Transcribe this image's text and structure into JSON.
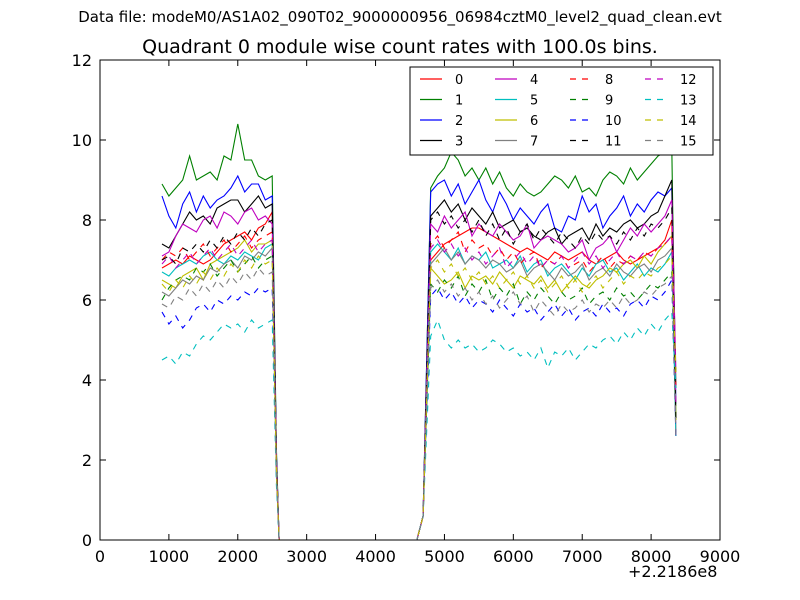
{
  "header": {
    "suptitle": "Data file: modeM0/AS1A02_090T02_9000000956_06984cztM0_level2_quad_clean.evt"
  },
  "chart_data": {
    "type": "line",
    "title": "Quadrant 0 module wise count rates with 100.0s bins.",
    "xlabel": "",
    "ylabel": "",
    "x_offset_label": "+2.2186e8",
    "xlim": [
      0,
      9000
    ],
    "ylim": [
      0,
      12
    ],
    "xticks": [
      0,
      1000,
      2000,
      3000,
      4000,
      5000,
      6000,
      7000,
      8000,
      9000
    ],
    "yticks": [
      0,
      2,
      4,
      6,
      8,
      10,
      12
    ],
    "grid": false,
    "legend_position": "top-right",
    "legend_columns": 4,
    "x_segments": [
      {
        "start": 900,
        "end": 2500
      },
      {
        "start": 4800,
        "end": 8300
      }
    ],
    "series": [
      {
        "name": "0",
        "color": "#ff0000",
        "dash": "solid",
        "seg1": [
          6.8,
          6.9,
          7.0,
          6.9,
          7.1,
          7.0,
          6.9,
          7.0,
          7.2,
          7.4,
          7.5,
          7.6,
          7.7,
          7.5,
          7.8,
          7.9,
          8.2
        ],
        "seg2": [
          7.0,
          7.2,
          7.4,
          7.5,
          7.6,
          7.7,
          7.8,
          7.8,
          7.7,
          7.6,
          7.5,
          7.4,
          7.3,
          7.2,
          7.3,
          7.2,
          7.1,
          7.0,
          7.2,
          7.1,
          7.0,
          7.1,
          7.2,
          7.0,
          6.9,
          7.0,
          7.1,
          7.2,
          7.0,
          6.9,
          7.0,
          7.1,
          7.2,
          7.3,
          7.5,
          8.0
        ]
      },
      {
        "name": "1",
        "color": "#008000",
        "dash": "solid",
        "seg1": [
          8.9,
          8.6,
          8.8,
          9.0,
          9.6,
          9.0,
          9.1,
          9.2,
          9.0,
          9.6,
          9.5,
          10.4,
          9.5,
          9.5,
          9.1,
          9.0,
          9.1
        ],
        "seg2": [
          8.8,
          9.1,
          9.3,
          9.7,
          9.5,
          9.1,
          9.3,
          9.0,
          9.3,
          8.9,
          9.2,
          8.8,
          8.6,
          8.9,
          8.7,
          8.6,
          8.7,
          8.9,
          9.1,
          9.0,
          8.8,
          9.1,
          8.7,
          8.8,
          8.6,
          9.0,
          9.2,
          9.1,
          8.9,
          9.3,
          9.0,
          9.2,
          9.4,
          9.6,
          9.7,
          9.8
        ]
      },
      {
        "name": "2",
        "color": "#0000ff",
        "dash": "solid",
        "seg1": [
          8.6,
          8.1,
          7.8,
          8.4,
          8.7,
          8.2,
          8.6,
          8.3,
          8.5,
          8.6,
          8.8,
          9.1,
          8.7,
          8.9,
          8.9,
          8.5,
          8.6
        ],
        "seg2": [
          8.7,
          8.9,
          9.0,
          8.6,
          8.9,
          8.4,
          8.7,
          9.0,
          8.5,
          8.2,
          8.7,
          8.4,
          8.0,
          8.3,
          8.1,
          7.9,
          8.2,
          8.4,
          7.8,
          7.7,
          8.1,
          8.0,
          8.6,
          8.2,
          8.4,
          7.8,
          8.1,
          8.3,
          8.6,
          8.1,
          8.4,
          8.2,
          8.5,
          8.7,
          8.6,
          8.8
        ]
      },
      {
        "name": "3",
        "color": "#000000",
        "dash": "solid",
        "seg1": [
          7.4,
          7.3,
          7.6,
          7.9,
          8.2,
          8.0,
          8.1,
          7.9,
          8.3,
          8.4,
          8.5,
          8.5,
          8.2,
          8.4,
          8.6,
          8.3,
          8.4
        ],
        "seg2": [
          8.1,
          8.3,
          8.5,
          8.2,
          8.4,
          8.0,
          8.3,
          8.1,
          7.9,
          8.2,
          7.8,
          7.9,
          8.0,
          7.7,
          7.8,
          7.6,
          7.5,
          7.7,
          7.8,
          7.4,
          7.6,
          7.7,
          7.8,
          7.5,
          7.9,
          7.6,
          7.8,
          7.7,
          7.9,
          8.0,
          7.8,
          7.9,
          8.1,
          8.2,
          8.6,
          9.0
        ]
      },
      {
        "name": "4",
        "color": "#bf00bf",
        "dash": "solid",
        "seg1": [
          7.1,
          7.2,
          7.6,
          7.9,
          7.8,
          7.7,
          8.0,
          8.1,
          7.8,
          8.2,
          8.1,
          7.9,
          8.2,
          8.3,
          8.0,
          8.1,
          7.9
        ],
        "seg2": [
          7.9,
          7.7,
          8.1,
          7.8,
          8.0,
          8.2,
          7.6,
          7.9,
          7.7,
          7.6,
          7.9,
          7.7,
          7.5,
          7.6,
          7.9,
          7.3,
          7.5,
          7.6,
          7.5,
          7.4,
          7.2,
          7.3,
          7.5,
          7.0,
          7.3,
          7.4,
          7.6,
          7.2,
          7.5,
          7.8,
          7.6,
          7.9,
          7.7,
          7.9,
          8.1,
          8.5
        ]
      },
      {
        "name": "5",
        "color": "#00bfbf",
        "dash": "solid",
        "seg1": [
          6.7,
          6.6,
          6.8,
          6.9,
          7.0,
          6.9,
          7.1,
          7.2,
          7.0,
          6.9,
          7.1,
          7.0,
          7.2,
          7.1,
          7.0,
          7.3,
          7.4
        ],
        "seg2": [
          7.2,
          7.4,
          7.2,
          7.0,
          7.3,
          6.9,
          7.1,
          7.0,
          7.2,
          6.8,
          6.9,
          7.0,
          6.8,
          7.1,
          6.7,
          6.9,
          7.0,
          6.6,
          6.8,
          6.9,
          6.7,
          6.5,
          6.8,
          6.6,
          6.9,
          7.0,
          6.7,
          6.8,
          6.5,
          6.7,
          6.9,
          6.6,
          6.8,
          6.7,
          6.9,
          7.2
        ]
      },
      {
        "name": "6",
        "color": "#bfbf00",
        "dash": "solid",
        "seg1": [
          6.5,
          6.4,
          6.3,
          6.6,
          6.7,
          6.8,
          6.5,
          6.9,
          7.0,
          7.1,
          7.2,
          7.3,
          7.5,
          7.2,
          7.4,
          7.4,
          7.5
        ],
        "seg2": [
          6.8,
          6.6,
          6.4,
          6.5,
          6.7,
          6.3,
          6.6,
          6.5,
          6.6,
          6.4,
          6.7,
          6.5,
          6.3,
          6.6,
          6.5,
          6.4,
          6.6,
          6.3,
          6.5,
          6.2,
          6.4,
          6.6,
          6.4,
          6.3,
          6.5,
          6.6,
          6.8,
          6.7,
          6.9,
          7.0,
          6.8,
          7.1,
          6.9,
          7.2,
          7.4,
          7.6
        ]
      },
      {
        "name": "7",
        "color": "#808080",
        "dash": "solid",
        "seg1": [
          6.2,
          6.1,
          6.3,
          6.5,
          6.4,
          6.6,
          6.5,
          6.8,
          6.7,
          6.9,
          7.0,
          6.8,
          7.1,
          7.0,
          7.2,
          7.1,
          7.3
        ],
        "seg2": [
          6.9,
          7.1,
          7.3,
          7.0,
          7.2,
          6.9,
          7.1,
          7.0,
          6.8,
          7.0,
          6.9,
          6.7,
          6.8,
          7.0,
          6.6,
          6.8,
          6.9,
          6.7,
          6.5,
          6.8,
          6.6,
          6.7,
          6.9,
          6.5,
          6.7,
          6.8,
          6.6,
          6.9,
          6.7,
          6.6,
          6.8,
          6.9,
          6.7,
          7.0,
          7.1,
          7.3
        ]
      },
      {
        "name": "8",
        "color": "#ff0000",
        "dash": "dashed",
        "seg1": [
          7.0,
          7.2,
          7.1,
          7.3,
          7.0,
          7.2,
          7.4,
          7.1,
          7.3,
          7.5,
          7.2,
          7.4,
          7.6,
          7.3,
          7.5,
          7.6,
          7.7
        ],
        "seg2": [
          7.4,
          7.6,
          7.3,
          7.5,
          7.7,
          7.2,
          7.5,
          7.3,
          7.4,
          7.1,
          7.3,
          7.0,
          7.2,
          6.9,
          7.1,
          7.2,
          6.8,
          7.0,
          6.9,
          7.1,
          6.8,
          6.9,
          7.0,
          6.7,
          6.9,
          7.1,
          6.8,
          7.0,
          6.9,
          7.1,
          7.0,
          7.2,
          7.1,
          7.3,
          7.4,
          7.6
        ]
      },
      {
        "name": "9",
        "color": "#008000",
        "dash": "dashed",
        "seg1": [
          6.0,
          6.3,
          6.5,
          6.6,
          6.5,
          6.8,
          6.7,
          6.9,
          6.6,
          6.8,
          7.0,
          6.7,
          6.9,
          7.1,
          6.8,
          7.0,
          7.1
        ],
        "seg2": [
          6.4,
          6.2,
          6.5,
          6.3,
          6.6,
          6.1,
          6.4,
          6.2,
          6.5,
          6.0,
          6.3,
          6.1,
          6.4,
          5.9,
          6.2,
          6.0,
          6.3,
          6.1,
          5.9,
          6.2,
          6.0,
          6.1,
          6.3,
          5.9,
          6.1,
          6.2,
          6.0,
          6.3,
          6.1,
          6.2,
          6.0,
          6.2,
          6.4,
          6.3,
          6.5,
          6.7
        ]
      },
      {
        "name": "10",
        "color": "#0000ff",
        "dash": "dashed",
        "seg1": [
          5.7,
          5.4,
          5.6,
          5.3,
          5.5,
          5.8,
          5.9,
          5.7,
          6.0,
          5.9,
          6.1,
          6.0,
          6.2,
          6.1,
          6.3,
          6.2,
          6.3
        ],
        "seg2": [
          6.1,
          6.3,
          6.0,
          6.2,
          5.9,
          6.1,
          5.8,
          6.0,
          5.9,
          5.7,
          6.0,
          5.8,
          5.6,
          5.9,
          5.7,
          5.8,
          5.5,
          5.7,
          5.9,
          5.6,
          5.8,
          5.5,
          5.7,
          5.8,
          5.6,
          5.9,
          5.7,
          5.8,
          5.6,
          5.9,
          6.0,
          5.8,
          6.1,
          6.0,
          6.2,
          6.5
        ]
      },
      {
        "name": "11",
        "color": "#000000",
        "dash": "dashed",
        "seg1": [
          7.0,
          7.1,
          6.9,
          7.3,
          7.2,
          7.4,
          7.2,
          7.5,
          7.3,
          7.6,
          7.4,
          7.7,
          7.5,
          7.8,
          7.6,
          7.9,
          8.0
        ],
        "seg2": [
          8.0,
          8.2,
          7.9,
          8.1,
          7.8,
          8.0,
          7.7,
          8.0,
          7.6,
          7.9,
          7.5,
          7.8,
          7.4,
          7.7,
          7.9,
          7.5,
          7.8,
          7.6,
          7.4,
          7.7,
          7.5,
          7.3,
          7.6,
          7.4,
          7.7,
          7.5,
          7.6,
          7.4,
          7.7,
          7.5,
          7.8,
          7.6,
          7.9,
          7.8,
          8.0,
          8.3
        ]
      },
      {
        "name": "12",
        "color": "#bf00bf",
        "dash": "dashed",
        "seg1": [
          6.9,
          7.1,
          6.8,
          7.0,
          7.2,
          6.9,
          7.1,
          7.3,
          7.0,
          7.2,
          7.4,
          7.1,
          7.3,
          7.5,
          7.2,
          7.4,
          7.5
        ],
        "seg2": [
          7.3,
          7.5,
          7.2,
          7.4,
          7.1,
          7.3,
          7.0,
          7.2,
          6.9,
          7.1,
          7.3,
          6.8,
          7.0,
          7.2,
          6.9,
          7.1,
          6.8,
          7.0,
          6.9,
          7.1,
          6.8,
          7.0,
          7.2,
          6.9,
          7.1,
          6.8,
          7.0,
          7.2,
          6.9,
          7.1,
          7.0,
          7.2,
          7.1,
          7.3,
          7.4,
          7.6
        ]
      },
      {
        "name": "13",
        "color": "#00bfbf",
        "dash": "dashed",
        "seg1": [
          4.5,
          4.6,
          4.4,
          4.7,
          4.6,
          4.9,
          5.1,
          5.0,
          5.2,
          5.4,
          5.3,
          5.4,
          5.2,
          5.5,
          5.3,
          5.4,
          5.5
        ],
        "seg2": [
          5.1,
          5.5,
          5.0,
          4.8,
          5.0,
          4.8,
          4.9,
          4.7,
          4.8,
          5.0,
          4.9,
          4.7,
          4.8,
          4.6,
          4.7,
          4.5,
          4.8,
          4.3,
          4.7,
          4.6,
          4.8,
          4.5,
          4.7,
          4.9,
          4.8,
          5.0,
          5.1,
          4.9,
          5.2,
          5.0,
          5.3,
          5.1,
          5.4,
          5.2,
          5.5,
          5.7
        ]
      },
      {
        "name": "14",
        "color": "#bfbf00",
        "dash": "dashed",
        "seg1": [
          6.4,
          6.2,
          6.5,
          6.3,
          6.6,
          6.4,
          6.7,
          6.5,
          6.8,
          6.6,
          6.9,
          6.7,
          7.0,
          6.8,
          7.1,
          6.9,
          7.0
        ],
        "seg2": [
          6.8,
          7.0,
          6.7,
          6.9,
          6.6,
          6.8,
          6.5,
          6.7,
          6.4,
          6.6,
          6.3,
          6.5,
          6.7,
          6.4,
          6.6,
          6.3,
          6.5,
          6.2,
          6.4,
          6.6,
          6.3,
          6.5,
          6.2,
          6.4,
          6.6,
          6.3,
          6.5,
          6.7,
          6.4,
          6.6,
          6.5,
          6.7,
          6.6,
          6.8,
          6.9,
          7.1
        ]
      },
      {
        "name": "15",
        "color": "#808080",
        "dash": "dashed",
        "seg1": [
          5.9,
          5.8,
          6.1,
          6.0,
          6.3,
          6.1,
          6.4,
          6.2,
          6.5,
          6.3,
          6.6,
          6.4,
          6.7,
          6.5,
          6.8,
          6.6,
          6.7
        ],
        "seg2": [
          6.3,
          6.5,
          6.2,
          6.4,
          6.1,
          6.3,
          6.0,
          6.2,
          5.9,
          6.1,
          5.8,
          6.0,
          6.2,
          5.9,
          6.1,
          5.7,
          6.0,
          5.8,
          5.6,
          5.9,
          5.7,
          5.8,
          6.0,
          5.7,
          5.9,
          5.8,
          6.0,
          5.8,
          6.1,
          5.9,
          6.0,
          6.2,
          6.1,
          6.3,
          6.4,
          6.6
        ]
      }
    ]
  }
}
